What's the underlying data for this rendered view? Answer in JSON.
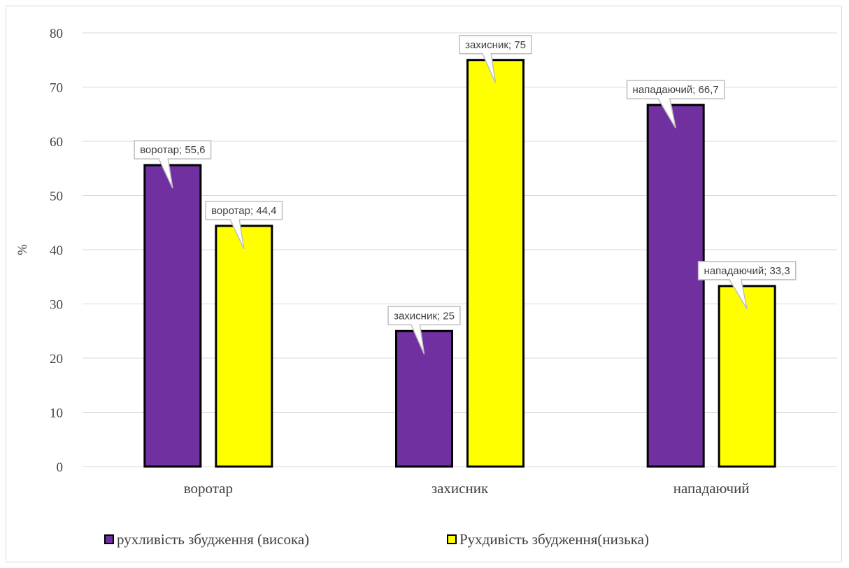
{
  "chart_data": {
    "type": "bar",
    "categories": [
      "воротар",
      "захисник",
      "нападаючий"
    ],
    "series": [
      {
        "name": "рухливість збудження (висока)",
        "color": "#7030a0",
        "values": [
          55.6,
          25,
          66.7
        ],
        "labels": [
          "воротар; 55,6",
          "захисник; 25",
          "нападаючий; 66,7"
        ]
      },
      {
        "name": "Рухдивість збудження(низька)",
        "color": "#ffff00",
        "values": [
          44.4,
          75,
          33.3
        ],
        "labels": [
          "воротар; 44,4",
          "захисник; 75",
          "нападаючий; 33,3"
        ]
      }
    ],
    "title": "",
    "xlabel": "",
    "ylabel": "%",
    "ylim": [
      0,
      80
    ],
    "yticks": [
      0,
      10,
      20,
      30,
      40,
      50,
      60,
      70,
      80
    ],
    "grid": true,
    "legend_position": "bottom"
  }
}
